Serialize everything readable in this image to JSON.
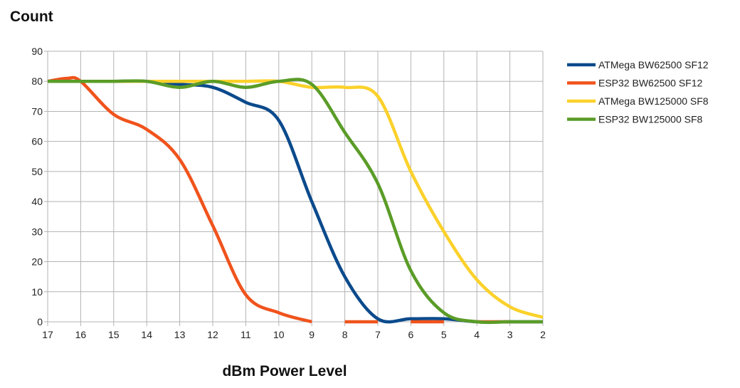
{
  "chart_data": {
    "type": "line",
    "title": "",
    "ylabel": "Count",
    "xlabel": "dBm Power Level",
    "x": [
      17,
      16,
      15,
      14,
      13,
      12,
      11,
      10,
      9,
      8,
      7,
      6,
      5,
      4,
      3,
      2
    ],
    "x_reversed": true,
    "ylim": [
      0,
      90
    ],
    "yticks": [
      0,
      10,
      20,
      30,
      40,
      50,
      60,
      70,
      80,
      90
    ],
    "grid": true,
    "legend_position": "right",
    "series": [
      {
        "name": "ATMega BW62500 SF12",
        "color": "#0b4a8c",
        "points": [
          [
            17,
            80
          ],
          [
            16,
            80
          ],
          [
            15,
            80
          ],
          [
            14,
            80
          ],
          [
            13,
            79
          ],
          [
            12,
            78
          ],
          [
            11,
            73
          ],
          [
            10,
            67
          ],
          [
            9,
            40
          ],
          [
            8,
            15
          ],
          [
            7,
            1
          ],
          [
            6,
            1
          ],
          [
            5,
            1
          ],
          [
            4,
            0
          ],
          [
            3,
            0
          ],
          [
            2,
            0
          ]
        ]
      },
      {
        "name": "ESP32 BW62500 SF12",
        "color": "#f0531c",
        "points": [
          [
            17,
            80
          ],
          [
            16.4,
            81
          ],
          [
            16,
            80
          ],
          [
            15,
            69
          ],
          [
            14,
            64
          ],
          [
            13,
            54
          ],
          [
            12,
            32
          ],
          [
            11,
            9
          ],
          [
            10,
            3
          ],
          [
            9,
            0
          ]
        ],
        "extra_segments": [
          [
            [
              8,
              0
            ],
            [
              7,
              0
            ]
          ],
          [
            [
              6,
              0
            ],
            [
              5,
              0
            ]
          ],
          [
            [
              4,
              0
            ],
            [
              3,
              0
            ]
          ]
        ]
      },
      {
        "name": "ATMega BW125000 SF8",
        "color": "#fbd12b",
        "points": [
          [
            17,
            80
          ],
          [
            16,
            80
          ],
          [
            15,
            80
          ],
          [
            14,
            80
          ],
          [
            13,
            80
          ],
          [
            12,
            80
          ],
          [
            11,
            80
          ],
          [
            10,
            80
          ],
          [
            9,
            78
          ],
          [
            8,
            78
          ],
          [
            7,
            75
          ],
          [
            6,
            50
          ],
          [
            5,
            30
          ],
          [
            4,
            14
          ],
          [
            3,
            5
          ],
          [
            2,
            1.5
          ]
        ]
      },
      {
        "name": "ESP32 BW125000 SF8",
        "color": "#5a9c27",
        "points": [
          [
            17,
            80
          ],
          [
            16,
            80
          ],
          [
            15,
            80
          ],
          [
            14,
            80
          ],
          [
            13,
            78
          ],
          [
            12,
            80
          ],
          [
            11,
            78
          ],
          [
            10,
            80
          ],
          [
            9,
            79
          ],
          [
            8,
            63
          ],
          [
            7,
            46
          ],
          [
            6,
            17
          ],
          [
            5,
            3
          ],
          [
            4,
            0
          ],
          [
            3,
            0
          ],
          [
            2,
            0
          ]
        ]
      }
    ]
  }
}
